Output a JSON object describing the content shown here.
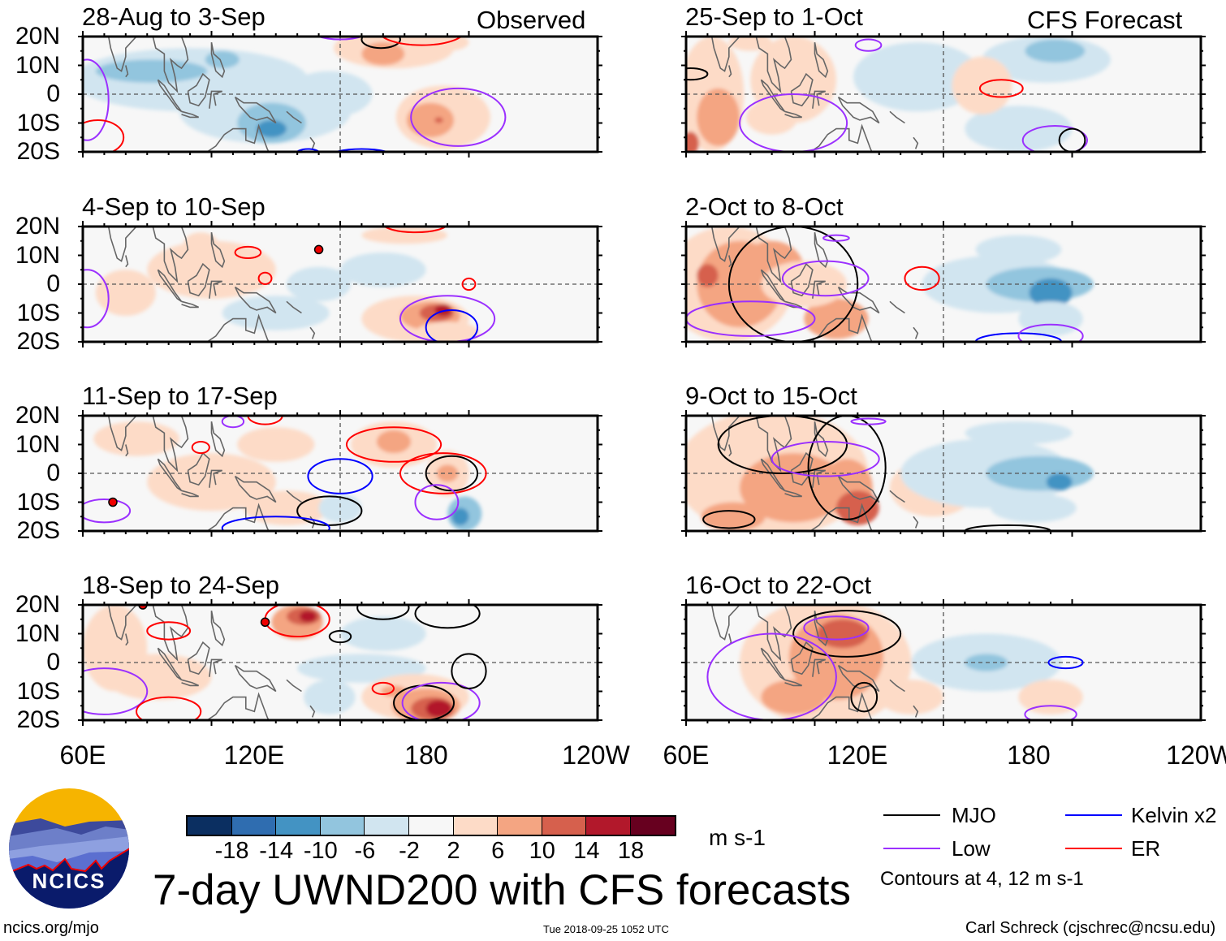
{
  "header": {
    "observed_label": "Observed",
    "forecast_label": "CFS Forecast"
  },
  "observed_panels": [
    {
      "title": "28-Aug to 3-Sep"
    },
    {
      "title": "4-Sep to 10-Sep"
    },
    {
      "title": "11-Sep to 17-Sep"
    },
    {
      "title": "18-Sep to 24-Sep"
    }
  ],
  "forecast_panels": [
    {
      "title": "25-Sep to 1-Oct"
    },
    {
      "title": "2-Oct to 8-Oct"
    },
    {
      "title": "9-Oct to 15-Oct"
    },
    {
      "title": "16-Oct to 22-Oct"
    }
  ],
  "lat_labels": [
    "20N",
    "10N",
    "0",
    "10S",
    "20S"
  ],
  "lon_labels": [
    "60E",
    "120E",
    "180",
    "120W"
  ],
  "colorbar": {
    "labels": [
      "-18",
      "-14",
      "-10",
      "-6",
      "-2",
      "2",
      "6",
      "10",
      "14",
      "18"
    ],
    "colors": [
      "#0b2f61",
      "#2f6db0",
      "#4393c3",
      "#92c5de",
      "#d1e5f0",
      "#f7f7f7",
      "#fddbc7",
      "#f4a582",
      "#d6604d",
      "#b2182b",
      "#67001f"
    ],
    "units": "m s-1"
  },
  "legend": {
    "items": [
      {
        "label": "MJO",
        "color": "#000000"
      },
      {
        "label": "Low",
        "color": "#9b30ff"
      },
      {
        "label": "Kelvin x2",
        "color": "#0000ff"
      },
      {
        "label": "ER",
        "color": "#ff0000"
      }
    ],
    "note": "Contours at 4, 12 m s-1"
  },
  "footer": {
    "title": "7-day UWND200 with CFS forecasts",
    "logo_text": "NCICS",
    "url": "ncics.org/mjo",
    "timestamp": "Tue 2018-09-25 1052 UTC",
    "author": "Carl Schreck (cjschrec@ncsu.edu)"
  }
}
